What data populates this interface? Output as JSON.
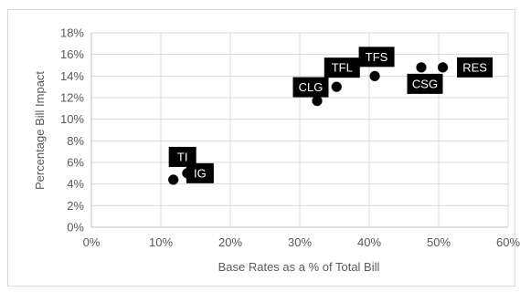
{
  "chart_data": {
    "type": "scatter",
    "title": "",
    "xlabel": "Base Rates as a % of Total Bill",
    "ylabel": "Percentage Bill Impact",
    "xlim": [
      0,
      60
    ],
    "ylim": [
      0,
      18
    ],
    "x_ticks": [
      "0%",
      "10%",
      "20%",
      "30%",
      "40%",
      "50%",
      "60%"
    ],
    "y_ticks": [
      "0%",
      "2%",
      "4%",
      "6%",
      "8%",
      "10%",
      "12%",
      "14%",
      "16%",
      "18%"
    ],
    "grid": true,
    "legend": "none",
    "marker_color": "#000000",
    "label_bg_color": "#000000",
    "label_text_color": "#ffffff",
    "points": [
      {
        "label": "TI",
        "x": 11.8,
        "y": 4.4
      },
      {
        "label": "IG",
        "x": 13.8,
        "y": 5.0
      },
      {
        "label": "CLG",
        "x": 32.5,
        "y": 11.7
      },
      {
        "label": "TFL",
        "x": 35.3,
        "y": 13.0
      },
      {
        "label": "TFS",
        "x": 40.8,
        "y": 14.0
      },
      {
        "label": "CSG",
        "x": 47.5,
        "y": 14.8
      },
      {
        "label": "RES",
        "x": 50.6,
        "y": 14.8
      }
    ]
  }
}
